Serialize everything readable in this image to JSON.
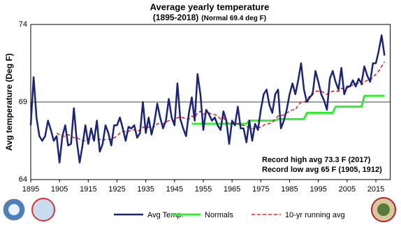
{
  "chart_data": {
    "type": "line",
    "title": "Average yearly temperature",
    "subtitle": "(1895-2018)",
    "note": "(Normal 69.4 deg F)",
    "y_label": "Avg temperature (Deg F)",
    "annotations": [
      "Record high avg 73.3 F (2017)",
      "Record low avg 65 F (1905, 1912)"
    ],
    "x": [
      1895,
      1896,
      1897,
      1898,
      1899,
      1900,
      1901,
      1902,
      1903,
      1904,
      1905,
      1906,
      1907,
      1908,
      1909,
      1910,
      1911,
      1912,
      1913,
      1914,
      1915,
      1916,
      1917,
      1918,
      1919,
      1920,
      1921,
      1922,
      1923,
      1924,
      1925,
      1926,
      1927,
      1928,
      1929,
      1930,
      1931,
      1932,
      1933,
      1934,
      1935,
      1936,
      1937,
      1938,
      1939,
      1940,
      1941,
      1942,
      1943,
      1944,
      1945,
      1946,
      1947,
      1948,
      1949,
      1950,
      1951,
      1952,
      1953,
      1954,
      1955,
      1956,
      1957,
      1958,
      1959,
      1960,
      1961,
      1962,
      1963,
      1964,
      1965,
      1966,
      1967,
      1968,
      1969,
      1970,
      1971,
      1972,
      1973,
      1974,
      1975,
      1976,
      1977,
      1978,
      1979,
      1980,
      1981,
      1982,
      1983,
      1984,
      1985,
      1986,
      1987,
      1988,
      1989,
      1990,
      1991,
      1992,
      1993,
      1994,
      1995,
      1996,
      1997,
      1998,
      1999,
      2000,
      2001,
      2002,
      2003,
      2004,
      2005,
      2006,
      2007,
      2008,
      2009,
      2010,
      2011,
      2012,
      2013,
      2014,
      2015,
      2016,
      2017,
      2018
    ],
    "series": [
      {
        "name": "Avg Temp.",
        "color": "#1a237e",
        "width": 2.5,
        "dash": false,
        "values": [
          67.5,
          70.6,
          68.0,
          66.8,
          66.5,
          66.8,
          67.8,
          67.2,
          66.5,
          66.8,
          65.1,
          66.8,
          67.5,
          66.2,
          66.3,
          68.6,
          66.5,
          65.1,
          66.2,
          67.5,
          66.3,
          67.3,
          66.5,
          67.8,
          65.8,
          66.3,
          67.5,
          67.0,
          66.2,
          67.5,
          67.5,
          68.0,
          67.3,
          66.5,
          67.4,
          67.3,
          67.5,
          66.7,
          67.0,
          69.0,
          67.0,
          68.0,
          66.9,
          67.7,
          68.9,
          68.0,
          67.3,
          67.8,
          69.2,
          68.0,
          67.5,
          70.2,
          67.9,
          67.3,
          66.8,
          68.3,
          69.3,
          67.8,
          70.8,
          69.5,
          67.2,
          68.5,
          68.2,
          67.8,
          68.0,
          67.5,
          67.2,
          68.4,
          67.8,
          66.3,
          67.8,
          67.5,
          68.7,
          67.3,
          67.3,
          66.4,
          67.8,
          66.5,
          67.6,
          67.2,
          68.5,
          69.5,
          69.8,
          68.8,
          68.3,
          69.5,
          69.8,
          67.3,
          67.8,
          68.5,
          69.5,
          70.2,
          69.5,
          70.4,
          71.5,
          69.8,
          69.0,
          69.3,
          69.5,
          71.0,
          70.3,
          69.5,
          69.1,
          68.5,
          70.5,
          71.0,
          70.3,
          69.8,
          71.2,
          69.5,
          70.0,
          70.0,
          70.4,
          70.0,
          70.5,
          70.2,
          71.3,
          70.7,
          70.3,
          71.5,
          71.5,
          72.3,
          73.3,
          72.0
        ]
      },
      {
        "name": "Normals",
        "color": "#33ee33",
        "width": 3,
        "dash": false,
        "values": [
          null,
          null,
          null,
          null,
          null,
          null,
          null,
          null,
          null,
          null,
          null,
          null,
          null,
          null,
          null,
          null,
          null,
          null,
          null,
          null,
          null,
          null,
          null,
          null,
          null,
          null,
          null,
          null,
          null,
          null,
          null,
          null,
          null,
          null,
          null,
          null,
          null,
          null,
          null,
          null,
          null,
          null,
          null,
          null,
          null,
          null,
          null,
          null,
          null,
          null,
          null,
          null,
          null,
          null,
          null,
          null,
          67.6,
          67.6,
          67.6,
          67.6,
          67.6,
          67.6,
          67.6,
          67.6,
          67.6,
          67.6,
          67.6,
          67.6,
          67.6,
          67.6,
          67.6,
          67.6,
          67.6,
          67.6,
          67.6,
          67.6,
          67.8,
          67.8,
          67.8,
          67.8,
          67.8,
          67.8,
          67.8,
          67.8,
          67.8,
          67.8,
          67.9,
          67.9,
          67.9,
          67.9,
          67.9,
          67.9,
          67.9,
          67.9,
          67.9,
          67.9,
          68.3,
          68.3,
          68.3,
          68.3,
          68.3,
          68.3,
          68.3,
          68.3,
          68.3,
          68.3,
          68.7,
          68.7,
          68.7,
          68.7,
          68.7,
          68.7,
          68.7,
          68.7,
          68.7,
          68.7,
          69.4,
          69.4,
          69.4,
          69.4,
          69.4,
          69.4,
          69.4,
          69.4
        ]
      },
      {
        "name": "10-yr running avg",
        "color": "#e00000",
        "width": 1.3,
        "dash": true,
        "values": [
          null,
          null,
          null,
          null,
          null,
          null,
          null,
          null,
          null,
          67.0,
          66.9,
          66.8,
          66.8,
          66.9,
          66.8,
          66.7,
          66.7,
          66.6,
          66.5,
          66.5,
          66.6,
          66.7,
          66.6,
          66.6,
          66.6,
          66.5,
          66.6,
          66.6,
          66.6,
          66.7,
          66.8,
          67.0,
          67.1,
          67.1,
          67.1,
          67.2,
          67.2,
          67.1,
          67.2,
          67.4,
          67.3,
          67.4,
          67.3,
          67.4,
          67.6,
          67.6,
          67.6,
          67.7,
          67.8,
          67.8,
          67.8,
          68.0,
          68.0,
          68.0,
          67.9,
          67.9,
          68.1,
          68.0,
          68.3,
          68.4,
          68.2,
          68.3,
          68.3,
          68.2,
          68.2,
          68.1,
          67.9,
          68.0,
          67.7,
          67.6,
          67.6,
          67.6,
          67.6,
          67.5,
          67.5,
          67.4,
          67.4,
          67.3,
          67.3,
          67.3,
          67.4,
          67.5,
          67.6,
          67.6,
          67.7,
          67.9,
          68.1,
          68.1,
          68.2,
          68.3,
          68.4,
          68.5,
          68.5,
          68.8,
          69.0,
          69.0,
          69.1,
          69.4,
          69.6,
          69.7,
          69.7,
          69.7,
          69.6,
          69.5,
          69.6,
          69.7,
          69.7,
          69.7,
          69.9,
          69.8,
          69.9,
          70.0,
          70.1,
          70.2,
          70.2,
          70.1,
          70.3,
          70.4,
          70.4,
          70.6,
          70.8,
          71.0,
          71.3,
          71.6
        ]
      }
    ],
    "xlim": [
      1895,
      2020
    ],
    "ylim": [
      64,
      74
    ],
    "xticks": [
      1895,
      1905,
      1915,
      1925,
      1935,
      1945,
      1955,
      1965,
      1975,
      1985,
      1995,
      2005,
      2015
    ],
    "yticks": [
      64,
      69,
      74
    ],
    "grid": true
  }
}
